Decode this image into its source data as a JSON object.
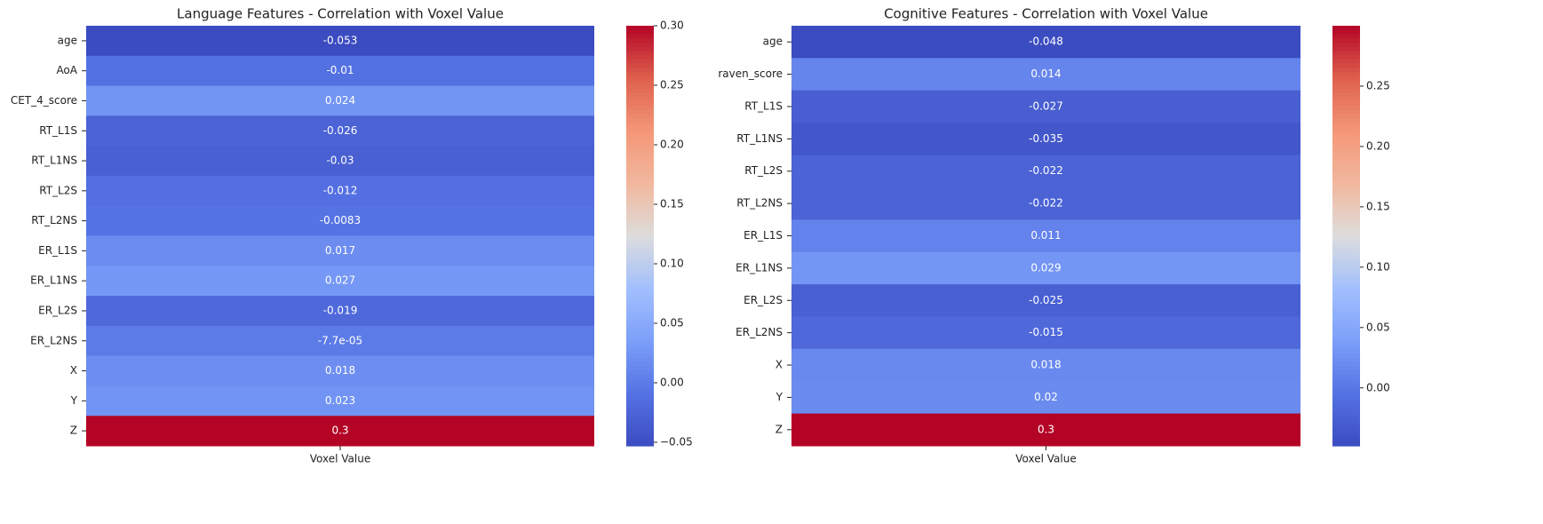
{
  "chart_data": [
    {
      "type": "heatmap",
      "title": "Language Features - Correlation with Voxel Value",
      "categories": [
        "age",
        "AoA",
        "CET_4_score",
        "RT_L1S",
        "RT_L1NS",
        "RT_L2S",
        "RT_L2NS",
        "ER_L1S",
        "ER_L1NS",
        "ER_L2S",
        "ER_L2NS",
        "X",
        "Y",
        "Z"
      ],
      "columns": [
        "Voxel Value"
      ],
      "values": [
        -0.053,
        -0.01,
        0.024,
        -0.026,
        -0.03,
        -0.012,
        -0.0083,
        0.017,
        0.027,
        -0.019,
        -7.7e-05,
        0.018,
        0.023,
        0.3
      ],
      "value_labels": [
        "-0.053",
        "-0.01",
        "0.024",
        "-0.026",
        "-0.03",
        "-0.012",
        "-0.0083",
        "0.017",
        "0.027",
        "-0.019",
        "-7.7e-05",
        "0.018",
        "0.023",
        "0.3"
      ],
      "colormap": "coolwarm",
      "clim": [
        -0.053,
        0.3
      ],
      "cticks": [
        {
          "value": -0.05,
          "label": "−0.05"
        },
        {
          "value": 0,
          "label": "0.00"
        },
        {
          "value": 0.05,
          "label": "0.05"
        },
        {
          "value": 0.1,
          "label": "0.10"
        },
        {
          "value": 0.15,
          "label": "0.15"
        },
        {
          "value": 0.2,
          "label": "0.20"
        },
        {
          "value": 0.25,
          "label": "0.25"
        },
        {
          "value": 0.3,
          "label": "0.30"
        }
      ]
    },
    {
      "type": "heatmap",
      "title": "Cognitive Features - Correlation with Voxel Value",
      "categories": [
        "age",
        "raven_score",
        "RT_L1S",
        "RT_L1NS",
        "RT_L2S",
        "RT_L2NS",
        "ER_L1S",
        "ER_L1NS",
        "ER_L2S",
        "ER_L2NS",
        "X",
        "Y",
        "Z"
      ],
      "columns": [
        "Voxel Value"
      ],
      "values": [
        -0.048,
        0.014,
        -0.027,
        -0.035,
        -0.022,
        -0.022,
        0.011,
        0.029,
        -0.025,
        -0.015,
        0.018,
        0.02,
        0.3
      ],
      "colormap": "coolwarm",
      "clim": [
        -0.048,
        0.3
      ],
      "cticks": [
        {
          "value": 0,
          "label": "0.00"
        },
        {
          "value": 0.05,
          "label": "0.05"
        },
        {
          "value": 0.1,
          "label": "0.10"
        },
        {
          "value": 0.15,
          "label": "0.15"
        },
        {
          "value": 0.2,
          "label": "0.20"
        },
        {
          "value": 0.25,
          "label": "0.25"
        }
      ]
    }
  ]
}
